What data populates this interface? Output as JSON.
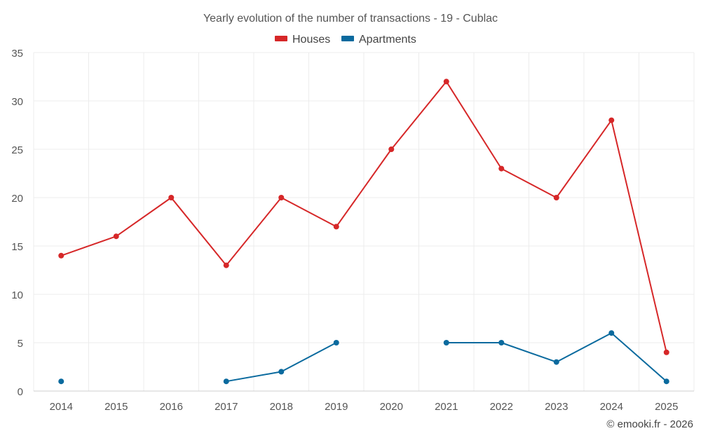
{
  "chart_data": {
    "type": "line",
    "title": "Yearly evolution of the number of transactions - 19 - Cublac",
    "xlabel": "",
    "ylabel": "",
    "categories": [
      "2014",
      "2015",
      "2016",
      "2017",
      "2018",
      "2019",
      "2020",
      "2021",
      "2022",
      "2023",
      "2024",
      "2025"
    ],
    "ylim": [
      0,
      35
    ],
    "yticks": [
      0,
      5,
      10,
      15,
      20,
      25,
      30,
      35
    ],
    "grid": true,
    "legend_position": "top-center",
    "series": [
      {
        "name": "Houses",
        "color": "#d62728",
        "values": [
          14,
          16,
          20,
          13,
          20,
          17,
          25,
          32,
          23,
          20,
          28,
          4
        ]
      },
      {
        "name": "Apartments",
        "color": "#0a6a9e",
        "values": [
          1,
          null,
          null,
          1,
          2,
          5,
          null,
          5,
          5,
          3,
          6,
          1
        ]
      }
    ]
  },
  "credit": "© emooki.fr - 2026"
}
